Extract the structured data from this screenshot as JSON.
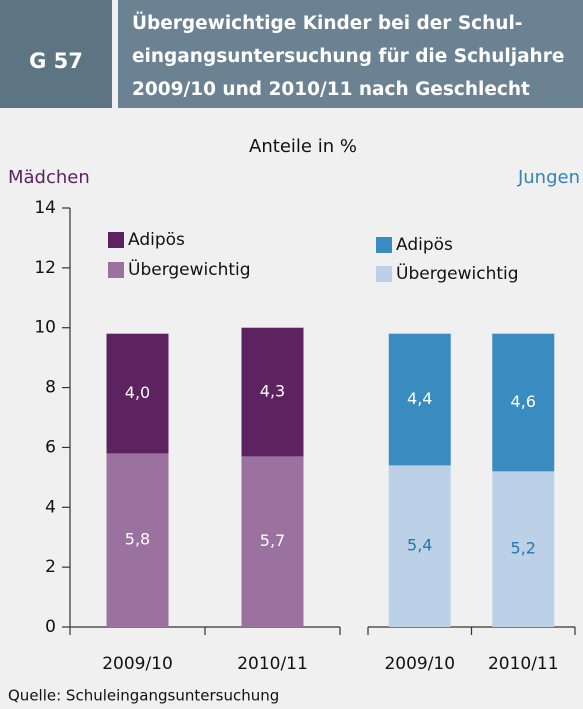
{
  "header": {
    "label": "G 57",
    "title": [
      "Übergewichtige Kinder bei der Schul-",
      "eingangsuntersuchung für die Schuljahre",
      "2009/10 und 2010/11 nach Geschlecht"
    ]
  },
  "subtitle": "Anteile in %",
  "source": "Quelle: Schuleingangsuntersuchung",
  "chart_data": [
    {
      "type": "bar",
      "stacked": true,
      "title": "Mädchen",
      "title_color": "#5c2360",
      "categories": [
        "2009/10",
        "2010/11"
      ],
      "series": [
        {
          "name": "Übergewichtig",
          "color": "#9b719f",
          "label_color": "#ffffff",
          "values": [
            5.8,
            5.7
          ],
          "value_labels": [
            "5,8",
            "5,7"
          ]
        },
        {
          "name": "Adipös",
          "color": "#5c2360",
          "label_color": "#ffffff",
          "values": [
            4.0,
            4.3
          ],
          "value_labels": [
            "4,0",
            "4,3"
          ]
        }
      ],
      "ylim": [
        0,
        14
      ],
      "yticks": [
        0,
        2,
        4,
        6,
        8,
        10,
        12,
        14
      ]
    },
    {
      "type": "bar",
      "stacked": true,
      "title": "Jungen",
      "title_color": "#2f84b8",
      "categories": [
        "2009/10",
        "2010/11"
      ],
      "series": [
        {
          "name": "Übergewichtig",
          "color": "#bcd1e7",
          "label_color": "#2477ad",
          "values": [
            5.4,
            5.2
          ],
          "value_labels": [
            "5,4",
            "5,2"
          ]
        },
        {
          "name": "Adipös",
          "color": "#3a8cc0",
          "label_color": "#ffffff",
          "values": [
            4.4,
            4.6
          ],
          "value_labels": [
            "4,4",
            "4,6"
          ]
        }
      ],
      "ylim": [
        0,
        14
      ]
    }
  ]
}
